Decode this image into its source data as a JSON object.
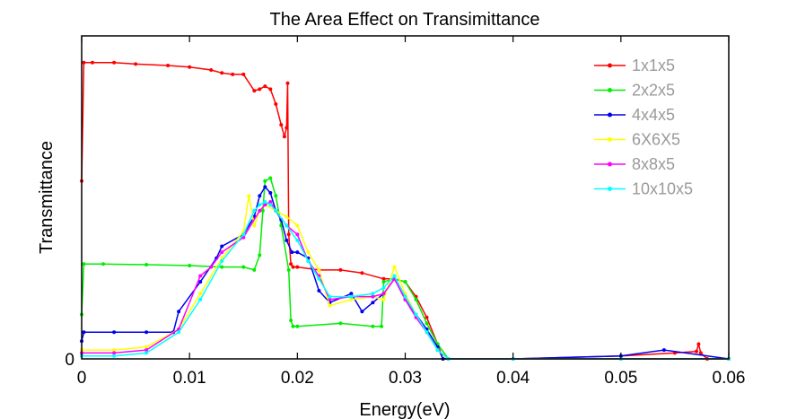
{
  "chart_data": {
    "type": "line",
    "title": "The Area Effect on Transimittance",
    "xlabel": "Energy(eV)",
    "ylabel": "Transmittance",
    "xlim": [
      0,
      0.06
    ],
    "ylim": [
      0,
      1.09
    ],
    "x_ticks": [
      0,
      0.01,
      0.02,
      0.03,
      0.04,
      0.05,
      0.06
    ],
    "x_tick_labels": [
      "0",
      "0.01",
      "0.02",
      "0.03",
      "0.04",
      "0.05",
      "0.06"
    ],
    "y_ticks": [
      0
    ],
    "y_tick_labels": [
      "0"
    ],
    "grid": false,
    "legend_position": "top-right",
    "series": [
      {
        "name": "1x1x5",
        "color": "#ff0000",
        "x": [
          0,
          0.0002,
          0.001,
          0.003,
          0.005,
          0.008,
          0.01,
          0.012,
          0.013,
          0.014,
          0.015,
          0.016,
          0.0165,
          0.017,
          0.0175,
          0.018,
          0.0185,
          0.0188,
          0.019,
          0.0191,
          0.0192,
          0.0194,
          0.0196,
          0.02,
          0.022,
          0.024,
          0.026,
          0.028,
          0.029,
          0.03,
          0.031,
          0.032,
          0.033,
          0.0335,
          0.034,
          0.04,
          0.05,
          0.055,
          0.057,
          0.0572,
          0.0574,
          0.058,
          0.06
        ],
        "y": [
          0.6,
          1.0,
          1.0,
          1.0,
          0.995,
          0.99,
          0.985,
          0.975,
          0.965,
          0.96,
          0.96,
          0.905,
          0.91,
          0.92,
          0.91,
          0.86,
          0.79,
          0.75,
          0.78,
          0.93,
          0.42,
          0.32,
          0.31,
          0.31,
          0.3,
          0.3,
          0.29,
          0.27,
          0.27,
          0.26,
          0.21,
          0.14,
          0.05,
          0.0,
          0.0,
          0.0,
          0.01,
          0.02,
          0.025,
          0.05,
          0.02,
          0.0,
          0.0
        ]
      },
      {
        "name": "2x2x5",
        "color": "#00ee00",
        "x": [
          0,
          0.0002,
          0.002,
          0.006,
          0.01,
          0.013,
          0.015,
          0.016,
          0.0165,
          0.0168,
          0.017,
          0.0175,
          0.018,
          0.0185,
          0.0192,
          0.0194,
          0.0196,
          0.02,
          0.024,
          0.027,
          0.0278,
          0.028,
          0.029,
          0.03,
          0.031,
          0.032,
          0.033,
          0.034,
          0.04,
          0.05,
          0.06
        ],
        "y": [
          0.15,
          0.32,
          0.32,
          0.318,
          0.315,
          0.31,
          0.31,
          0.3,
          0.35,
          0.5,
          0.6,
          0.61,
          0.55,
          0.45,
          0.3,
          0.13,
          0.11,
          0.11,
          0.12,
          0.11,
          0.11,
          0.26,
          0.27,
          0.26,
          0.2,
          0.12,
          0.05,
          0.0,
          0.0,
          0.0,
          0.0
        ]
      },
      {
        "name": "4x4x5",
        "color": "#0000ee",
        "x": [
          0,
          0.0002,
          0.003,
          0.006,
          0.0085,
          0.009,
          0.011,
          0.0125,
          0.013,
          0.015,
          0.016,
          0.0165,
          0.017,
          0.0175,
          0.018,
          0.0185,
          0.019,
          0.0195,
          0.02,
          0.021,
          0.022,
          0.023,
          0.025,
          0.026,
          0.027,
          0.028,
          0.029,
          0.03,
          0.031,
          0.032,
          0.033,
          0.0335,
          0.034,
          0.04,
          0.05,
          0.054,
          0.06
        ],
        "y": [
          0.06,
          0.09,
          0.09,
          0.09,
          0.09,
          0.16,
          0.26,
          0.34,
          0.38,
          0.42,
          0.48,
          0.55,
          0.58,
          0.56,
          0.5,
          0.47,
          0.4,
          0.36,
          0.36,
          0.34,
          0.23,
          0.19,
          0.22,
          0.16,
          0.19,
          0.22,
          0.27,
          0.2,
          0.15,
          0.1,
          0.04,
          0.0,
          0.0,
          0.0,
          0.01,
          0.03,
          0.0
        ]
      },
      {
        "name": "6X6X5",
        "color": "#ffff00",
        "x": [
          0,
          0.003,
          0.006,
          0.009,
          0.011,
          0.013,
          0.015,
          0.0155,
          0.016,
          0.0165,
          0.017,
          0.018,
          0.019,
          0.02,
          0.021,
          0.022,
          0.023,
          0.025,
          0.027,
          0.028,
          0.029,
          0.03,
          0.031,
          0.032,
          0.033,
          0.034,
          0.04,
          0.05,
          0.06
        ],
        "y": [
          0.03,
          0.03,
          0.04,
          0.1,
          0.22,
          0.34,
          0.43,
          0.55,
          0.45,
          0.5,
          0.52,
          0.5,
          0.48,
          0.45,
          0.36,
          0.3,
          0.18,
          0.2,
          0.21,
          0.2,
          0.31,
          0.22,
          0.15,
          0.09,
          0.03,
          0.0,
          0.0,
          0.0,
          0.0
        ]
      },
      {
        "name": "8x8x5",
        "color": "#ff00ff",
        "x": [
          0,
          0.003,
          0.006,
          0.009,
          0.011,
          0.012,
          0.013,
          0.015,
          0.0165,
          0.017,
          0.0175,
          0.018,
          0.019,
          0.02,
          0.021,
          0.022,
          0.023,
          0.025,
          0.027,
          0.028,
          0.029,
          0.03,
          0.031,
          0.032,
          0.033,
          0.034,
          0.04,
          0.05,
          0.06
        ],
        "y": [
          0.02,
          0.02,
          0.03,
          0.1,
          0.28,
          0.31,
          0.36,
          0.41,
          0.5,
          0.52,
          0.53,
          0.5,
          0.45,
          0.42,
          0.33,
          0.28,
          0.2,
          0.21,
          0.21,
          0.22,
          0.27,
          0.2,
          0.14,
          0.09,
          0.03,
          0.0,
          0.0,
          0.0,
          0.0
        ]
      },
      {
        "name": "10x10x5",
        "color": "#00ffff",
        "x": [
          0,
          0.003,
          0.006,
          0.009,
          0.011,
          0.013,
          0.015,
          0.016,
          0.0165,
          0.017,
          0.0175,
          0.018,
          0.019,
          0.02,
          0.021,
          0.022,
          0.023,
          0.025,
          0.027,
          0.028,
          0.029,
          0.03,
          0.031,
          0.032,
          0.033,
          0.034,
          0.04,
          0.05,
          0.06
        ],
        "y": [
          0.01,
          0.01,
          0.02,
          0.09,
          0.2,
          0.33,
          0.42,
          0.5,
          0.52,
          0.53,
          0.52,
          0.5,
          0.45,
          0.4,
          0.33,
          0.27,
          0.21,
          0.21,
          0.22,
          0.24,
          0.28,
          0.21,
          0.15,
          0.09,
          0.03,
          0.0,
          0.0,
          0.0,
          0.0
        ]
      }
    ]
  }
}
